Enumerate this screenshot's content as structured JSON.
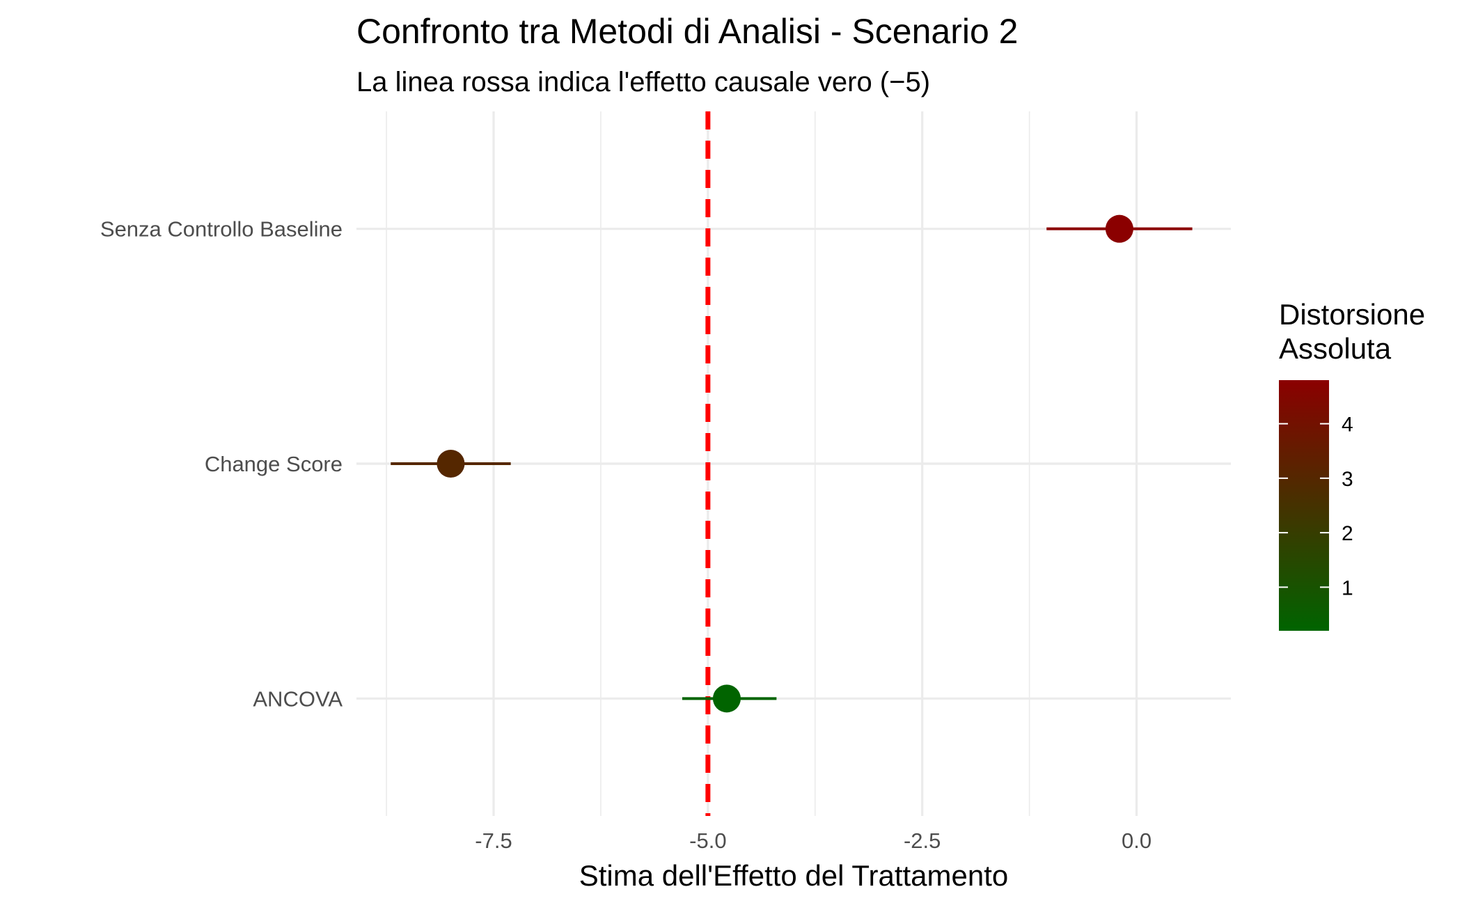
{
  "chart_data": {
    "type": "scatter",
    "subtype": "dot-and-whisker",
    "title": "Confronto tra Metodi di Analisi - Scenario 2",
    "subtitle": "La linea rossa indica l'effetto causale vero (−5)",
    "xlabel": "Stima dell'Effetto del Trattamento",
    "ylabel": "",
    "xlim": [
      -9.1,
      1.1
    ],
    "x_ticks": [
      -7.5,
      -5.0,
      -2.5,
      0.0
    ],
    "x_tick_labels": [
      "-7.5",
      "-5.0",
      "-2.5",
      "0.0"
    ],
    "grid": true,
    "reference_line": {
      "x": -5,
      "color": "#ff0000",
      "style": "dashed"
    },
    "categories": [
      "Senza Controllo Baseline",
      "Change Score",
      "ANCOVA"
    ],
    "points": [
      {
        "method": "Senza Controllo Baseline",
        "estimate": -0.2,
        "ci_low": -1.05,
        "ci_high": 0.65,
        "abs_bias": 4.8
      },
      {
        "method": "Change Score",
        "estimate": -8.0,
        "ci_low": -8.7,
        "ci_high": -7.3,
        "abs_bias": 3.0
      },
      {
        "method": "ANCOVA",
        "estimate": -4.78,
        "ci_low": -5.3,
        "ci_high": -4.2,
        "abs_bias": 0.22
      }
    ],
    "legend": {
      "title_lines": [
        "Distorsione",
        "Assoluta"
      ],
      "placement": "right",
      "scale_min": 0.2,
      "scale_max": 4.8,
      "ticks": [
        1,
        2,
        3,
        4
      ],
      "tick_labels": [
        "1",
        "2",
        "3",
        "4"
      ],
      "color_low": "#006400",
      "color_high": "#8b0000"
    }
  }
}
